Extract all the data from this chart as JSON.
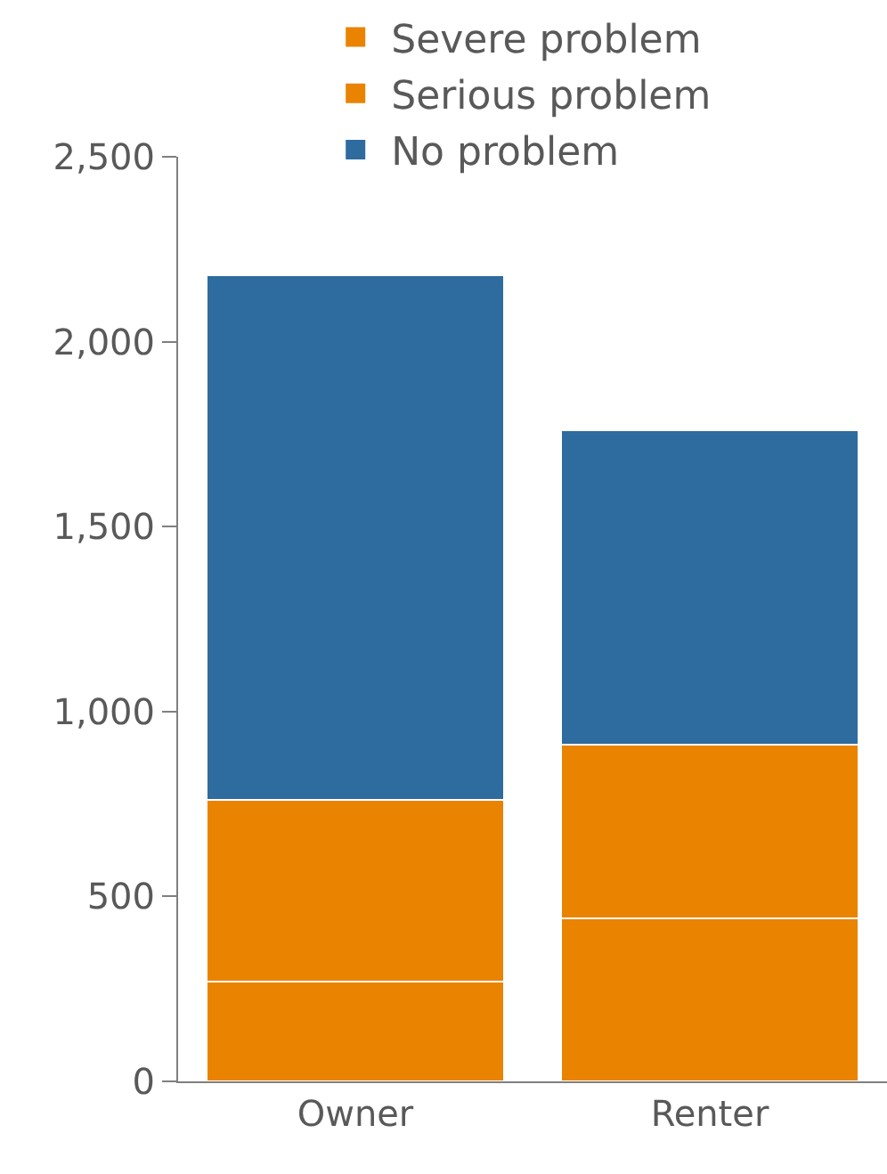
{
  "chart_data": {
    "type": "bar",
    "stacked": true,
    "categories": [
      "Owner",
      "Renter"
    ],
    "series": [
      {
        "name": "Severe problem",
        "color": "#e98300",
        "values": [
          270,
          440
        ]
      },
      {
        "name": "Serious problem",
        "color": "#e98300",
        "values": [
          490,
          470
        ]
      },
      {
        "name": "No problem",
        "color": "#2e6b9e",
        "values": [
          1420,
          850
        ]
      }
    ],
    "ylim": [
      0,
      2500
    ],
    "yticks": [
      {
        "value": 0,
        "label": "0"
      },
      {
        "value": 500,
        "label": "500"
      },
      {
        "value": 1000,
        "label": "1,000"
      },
      {
        "value": 1500,
        "label": "1,500"
      },
      {
        "value": 2000,
        "label": "2,000"
      },
      {
        "value": 2500,
        "label": "2,500"
      }
    ],
    "legend": "top right"
  }
}
